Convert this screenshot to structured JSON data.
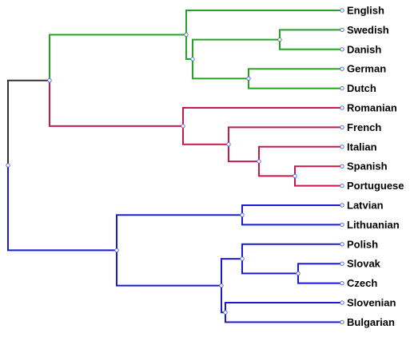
{
  "colors": {
    "root": "#333333",
    "germanic": "#22a322",
    "romance": "#c21a4b",
    "balto_slavic": "#1a1ad6",
    "node_stroke": "#5a6fd0"
  },
  "languages": [
    "English",
    "Swedish",
    "Danish",
    "German",
    "Dutch",
    "Romanian",
    "French",
    "Italian",
    "Spanish",
    "Portuguese",
    "Latvian",
    "Lithuanian",
    "Polish",
    "Slovak",
    "Czech",
    "Slovenian",
    "Bulgarian"
  ],
  "tree": {
    "color": "root",
    "children": [
      {
        "color": "root",
        "children": [
          {
            "color": "germanic",
            "children": [
              {
                "leaf": 0
              },
              {
                "children": [
                  {
                    "children": [
                      {
                        "leaf": 1
                      },
                      {
                        "leaf": 2
                      }
                    ]
                  },
                  {
                    "children": [
                      {
                        "leaf": 3
                      },
                      {
                        "leaf": 4
                      }
                    ]
                  }
                ]
              }
            ]
          },
          {
            "color": "romance",
            "children": [
              {
                "leaf": 5
              },
              {
                "children": [
                  {
                    "leaf": 6
                  },
                  {
                    "children": [
                      {
                        "leaf": 7
                      },
                      {
                        "children": [
                          {
                            "leaf": 8
                          },
                          {
                            "leaf": 9
                          }
                        ]
                      }
                    ]
                  }
                ]
              }
            ]
          }
        ]
      },
      {
        "color": "balto_slavic",
        "children": [
          {
            "children": [
              {
                "leaf": 10
              },
              {
                "leaf": 11
              }
            ]
          },
          {
            "children": [
              {
                "children": [
                  {
                    "leaf": 12
                  },
                  {
                    "children": [
                      {
                        "leaf": 13
                      },
                      {
                        "leaf": 14
                      }
                    ]
                  }
                ]
              },
              {
                "children": [
                  {
                    "leaf": 15
                  },
                  {
                    "leaf": 16
                  }
                ]
              }
            ]
          }
        ]
      }
    ]
  }
}
